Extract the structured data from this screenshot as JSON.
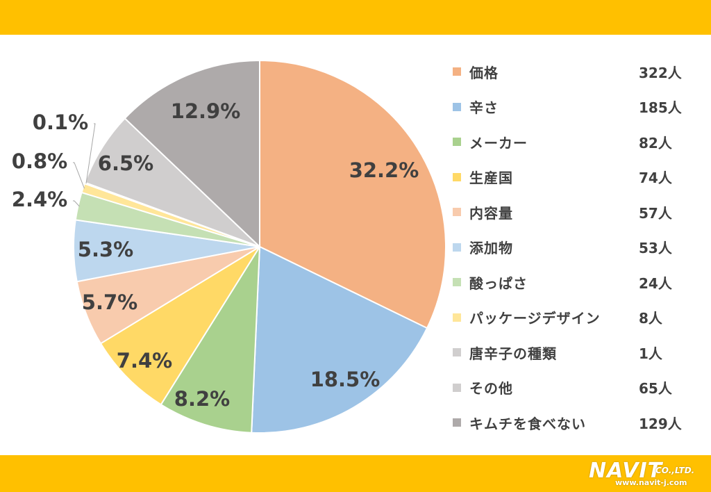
{
  "chart_data": {
    "type": "pie",
    "slices": [
      {
        "name": "価格",
        "count_label": "322人",
        "value": 32.2,
        "label": "32.2%",
        "color": "#F4B183"
      },
      {
        "name": "辛さ",
        "count_label": "185人",
        "value": 18.5,
        "label": "18.5%",
        "color": "#9DC3E6"
      },
      {
        "name": "メーカー",
        "count_label": "82人",
        "value": 8.2,
        "label": "8.2%",
        "color": "#A9D18E"
      },
      {
        "name": "生産国",
        "count_label": "74人",
        "value": 7.4,
        "label": "7.4%",
        "color": "#FFD966"
      },
      {
        "name": "内容量",
        "count_label": "57人",
        "value": 5.7,
        "label": "5.7%",
        "color": "#F8CBAD"
      },
      {
        "name": "添加物",
        "count_label": "53人",
        "value": 5.3,
        "label": "5.3%",
        "color": "#BDD7EE"
      },
      {
        "name": "酸っぱさ",
        "count_label": "24人",
        "value": 2.4,
        "label": "2.4%",
        "color": "#C5E0B4"
      },
      {
        "name": "パッケージデザイン",
        "count_label": "8人",
        "value": 0.8,
        "label": "0.8%",
        "color": "#FFE699"
      },
      {
        "name": "唐辛子の種類",
        "count_label": "1人",
        "value": 0.1,
        "label": "0.1%",
        "color": "#D0CECE"
      },
      {
        "name": "その他",
        "count_label": "65人",
        "value": 6.5,
        "label": "6.5%",
        "color": "#D0CECE"
      },
      {
        "name": "キムチを食べない",
        "count_label": "129人",
        "value": 12.9,
        "label": "12.9%",
        "color": "#AEAAAA"
      }
    ],
    "legend_position": "right"
  },
  "logo": {
    "name": "NAVIT",
    "suffix": "CO.,LTD.",
    "url": "www.navit-j.com"
  },
  "colors": {
    "band": "#FFC000",
    "text": "#404040",
    "slice_border": "#ffffff"
  }
}
